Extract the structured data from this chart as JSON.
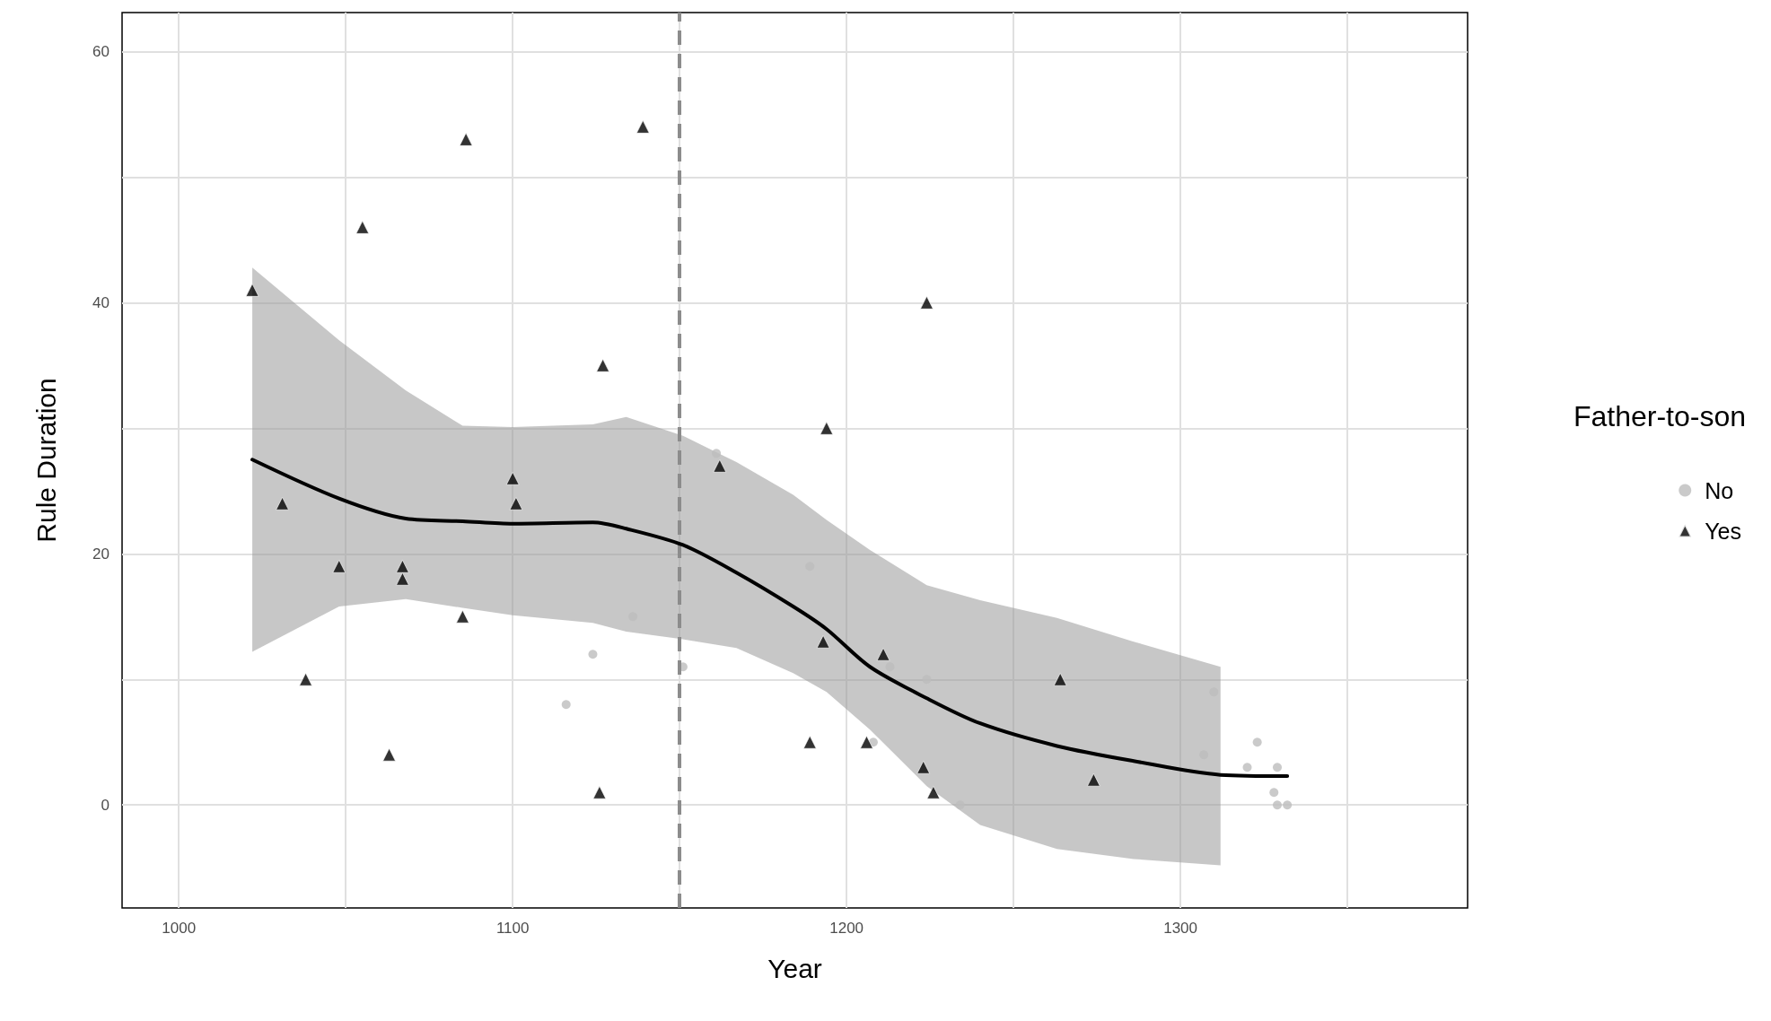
{
  "chart_data": {
    "type": "scatter",
    "xlabel": "Year",
    "ylabel": "Rule Duration",
    "legend_title": "Father-to-son",
    "legend": "right",
    "grid": true,
    "xlim": [
      983,
      1386
    ],
    "ylim": [
      -8.2,
      63.1
    ],
    "xticks": [
      1000,
      {
        "value": 1050,
        "label": null
      },
      1100,
      {
        "value": 1150,
        "label": null
      },
      1200,
      {
        "value": 1250,
        "label": null
      },
      1300,
      {
        "value": 1350,
        "label": null
      }
    ],
    "yticks": [
      0,
      {
        "value": 10,
        "label": null
      },
      20,
      {
        "value": 30,
        "label": null
      },
      40,
      {
        "value": 50,
        "label": null
      },
      60
    ],
    "ref_lines": [
      {
        "axis": "x",
        "value": 1150,
        "color": "#8c8c8c",
        "line_style": "dashed"
      }
    ],
    "series": [
      {
        "name": "No",
        "marker": "circle",
        "color": "#bdbdbd",
        "x": [
          1124,
          1116,
          1136,
          1151,
          1161,
          1189,
          1213,
          1224,
          1208,
          1234,
          1310,
          1307,
          1323,
          1320,
          1329,
          1328,
          1329,
          1332
        ],
        "values": [
          12,
          8,
          15,
          11,
          28,
          19,
          11,
          10,
          5,
          0,
          9,
          4,
          5,
          3,
          3,
          1,
          0,
          0
        ]
      },
      {
        "name": "Yes",
        "marker": "triangle",
        "color": "#000000",
        "x": [
          1022,
          1031,
          1038,
          1048,
          1055,
          1063,
          1067,
          1067,
          1085,
          1086,
          1100,
          1101,
          1126,
          1127,
          1139,
          1162,
          1189,
          1193,
          1194,
          1206,
          1211,
          1223,
          1224,
          1226,
          1264,
          1274
        ],
        "values": [
          41,
          24,
          10,
          19,
          46,
          4,
          19,
          18,
          15,
          53,
          26,
          24,
          1,
          35,
          54,
          27,
          5,
          13,
          30,
          5,
          12,
          3,
          40,
          1,
          10,
          2
        ]
      },
      {
        "type": "line",
        "marker": "none",
        "line_style": "solid",
        "color": "#000000",
        "x": [
          1022,
          1048,
          1068,
          1085,
          1100,
          1124,
          1134,
          1151,
          1167,
          1184,
          1194,
          1207,
          1224,
          1240,
          1263,
          1286,
          1312,
          1332
        ],
        "values": [
          27.5,
          24.4,
          22.8,
          22.6,
          22.4,
          22.5,
          22,
          20.7,
          18.5,
          15.8,
          14,
          11,
          8.5,
          6.5,
          4.7,
          3.5,
          2.4,
          2.3
        ],
        "lower": [
          12.2,
          15.8,
          16.4,
          15.7,
          15.1,
          14.5,
          13.8,
          13.2,
          12.5,
          10.5,
          9,
          6,
          1.5,
          -1.6,
          -3.5,
          -4.3,
          -4.8,
          null
        ],
        "upper": [
          42.8,
          37,
          33,
          30.2,
          30.1,
          30.3,
          30.9,
          29.4,
          27.3,
          24.7,
          22.7,
          20.3,
          17.5,
          16.3,
          14.9,
          13,
          11,
          null
        ]
      }
    ]
  }
}
